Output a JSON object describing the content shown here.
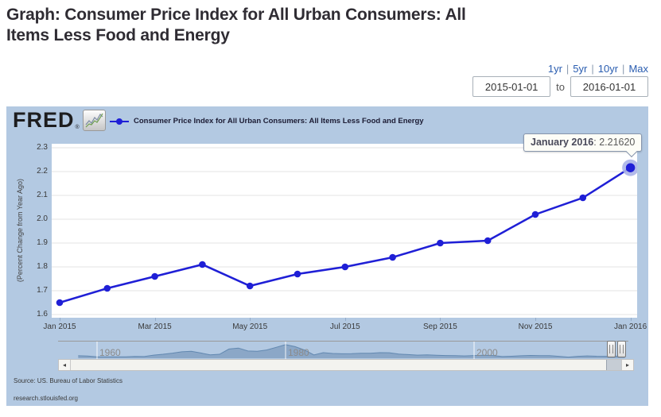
{
  "header": {
    "title_lines": [
      "Graph: Consumer Price Index for All Urban Consumers: All",
      "Items Less Food and Energy"
    ]
  },
  "controls": {
    "range_links": [
      "1yr",
      "5yr",
      "10yr",
      "Max"
    ],
    "separator": "|",
    "start_date": "2015-01-01",
    "to_label": "to",
    "end_date": "2016-01-01",
    "scroll_left_glyph": "◂",
    "scroll_right_glyph": "▸"
  },
  "fred": {
    "logo_text": "FRED",
    "reg_mark": "®"
  },
  "legend": {
    "label": "Consumer Price Index for All Urban Consumers: All Items Less Food and Energy"
  },
  "tooltip": {
    "date_label": "January 2016",
    "separator": ": ",
    "value": "2.21620"
  },
  "chart_data": {
    "type": "line",
    "series": [
      {
        "name": "Consumer Price Index for All Urban Consumers: All Items Less Food and Energy",
        "x": [
          "Jan 2015",
          "Feb 2015",
          "Mar 2015",
          "Apr 2015",
          "May 2015",
          "Jun 2015",
          "Jul 2015",
          "Aug 2015",
          "Sep 2015",
          "Oct 2015",
          "Nov 2015",
          "Dec 2015",
          "Jan 2016"
        ],
        "values": [
          1.65,
          1.71,
          1.76,
          1.81,
          1.72,
          1.77,
          1.8,
          1.84,
          1.9,
          1.91,
          2.02,
          2.09,
          2.2162
        ]
      }
    ],
    "ylabel": "(Percent Change from Year Ago)",
    "ylim": [
      1.6,
      2.3
    ],
    "ytick_step": 0.1,
    "xtick_labels": [
      "Jan 2015",
      "Mar 2015",
      "May 2015",
      "Jul 2015",
      "Sep 2015",
      "Nov 2015",
      "Jan 2016"
    ],
    "grid": true,
    "line_color": "#1f1fd6",
    "legend_position": "top-left",
    "highlight_point": {
      "x": "Jan 2016",
      "value": 2.2162
    }
  },
  "range_selector": {
    "year_labels": [
      {
        "label": "1960"
      },
      {
        "label": "1980"
      },
      {
        "label": "2000"
      }
    ],
    "history_start_year": 1958,
    "history_values": [
      2.2,
      2.0,
      1.3,
      1.3,
      1.3,
      1.3,
      1.6,
      1.5,
      2.8,
      3.6,
      4.6,
      5.8,
      6.3,
      4.7,
      3.0,
      3.6,
      8.3,
      9.1,
      6.5,
      6.3,
      7.4,
      9.8,
      12.2,
      10.4,
      7.4,
      3.0,
      5.0,
      4.3,
      4.0,
      4.1,
      4.4,
      4.5,
      5.0,
      4.9,
      3.7,
      3.3,
      2.8,
      3.0,
      2.7,
      2.4,
      2.3,
      2.1,
      2.4,
      2.7,
      2.4,
      1.5,
      1.8,
      2.2,
      2.5,
      2.3,
      2.3,
      1.7,
      1.0,
      1.7,
      2.1,
      1.8,
      1.7,
      1.8,
      2.2
    ],
    "fill_color": "#8ba7c7",
    "edge_color": "#6288b0"
  },
  "footer": {
    "source": "Source: US. Bureau of Labor Statistics",
    "site": "research.stlouisfed.org"
  },
  "colors": {
    "panel_bg": "#b3c9e2",
    "line": "#1f1fd6",
    "halo": "#aab3e8",
    "grid": "#e3e3e3",
    "link": "#2a5db0"
  }
}
